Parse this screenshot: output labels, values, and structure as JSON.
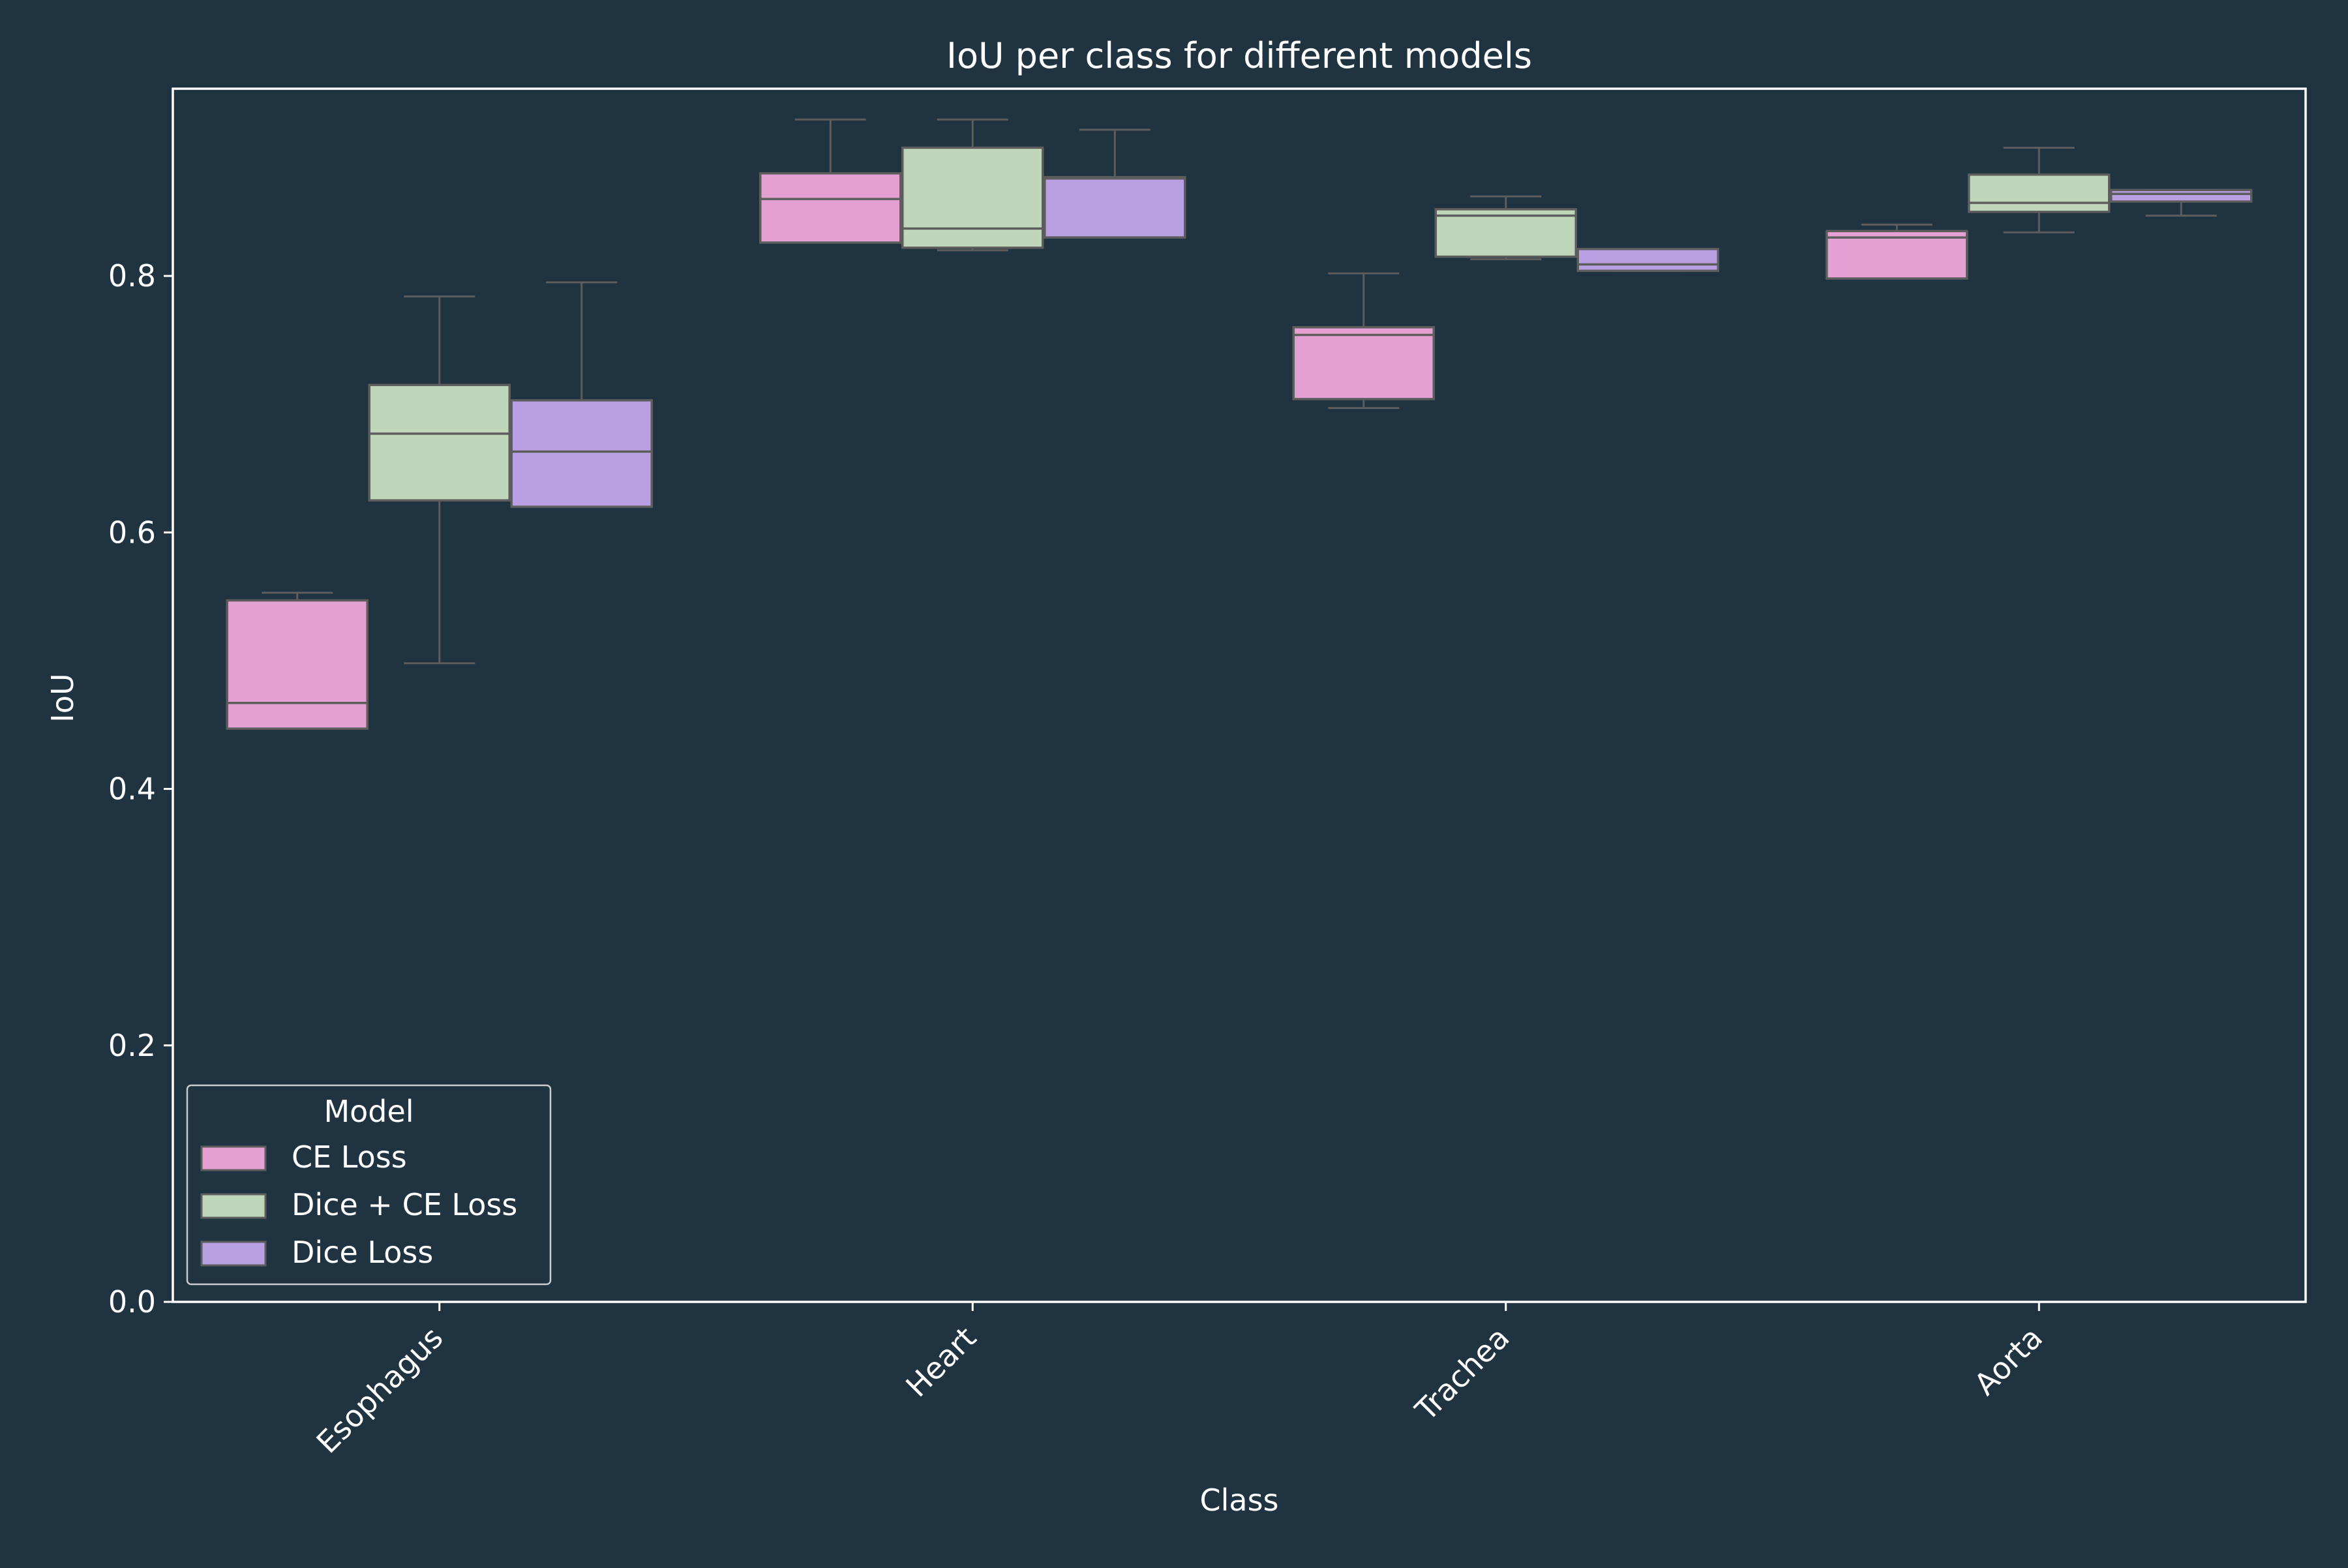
{
  "chart_data": {
    "type": "box",
    "title": "IoU per class for different models",
    "xlabel": "Class",
    "ylabel": "IoU",
    "ylim": [
      0.0,
      0.946
    ],
    "yticks": [
      "0.0",
      "0.2",
      "0.4",
      "0.6",
      "0.8"
    ],
    "categories": [
      "Esophagus",
      "Heart",
      "Trachea",
      "Aorta"
    ],
    "legend": {
      "title": "Model",
      "position": "lower-left"
    },
    "series": [
      {
        "name": "CE Loss",
        "color": "#e4a0d2",
        "boxes": [
          {
            "whisker_low": 0.447,
            "q1": 0.447,
            "median": 0.467,
            "q3": 0.547,
            "whisker_high": 0.553
          },
          {
            "whisker_low": 0.826,
            "q1": 0.826,
            "median": 0.86,
            "q3": 0.88,
            "whisker_high": 0.922
          },
          {
            "whisker_low": 0.697,
            "q1": 0.704,
            "median": 0.754,
            "q3": 0.76,
            "whisker_high": 0.802
          },
          {
            "whisker_low": 0.798,
            "q1": 0.798,
            "median": 0.83,
            "q3": 0.835,
            "whisker_high": 0.84
          }
        ]
      },
      {
        "name": "Dice + CE Loss",
        "color": "#bfd6bb",
        "boxes": [
          {
            "whisker_low": 0.498,
            "q1": 0.625,
            "median": 0.677,
            "q3": 0.715,
            "whisker_high": 0.784
          },
          {
            "whisker_low": 0.82,
            "q1": 0.822,
            "median": 0.837,
            "q3": 0.9,
            "whisker_high": 0.922
          },
          {
            "whisker_low": 0.813,
            "q1": 0.815,
            "median": 0.847,
            "q3": 0.852,
            "whisker_high": 0.862
          },
          {
            "whisker_low": 0.834,
            "q1": 0.85,
            "median": 0.857,
            "q3": 0.879,
            "whisker_high": 0.9
          }
        ]
      },
      {
        "name": "Dice Loss",
        "color": "#b9a0e2",
        "boxes": [
          {
            "whisker_low": 0.62,
            "q1": 0.62,
            "median": 0.663,
            "q3": 0.703,
            "whisker_high": 0.795
          },
          {
            "whisker_low": 0.83,
            "q1": 0.83,
            "median": 0.876,
            "q3": 0.877,
            "whisker_high": 0.914
          },
          {
            "whisker_low": 0.804,
            "q1": 0.804,
            "median": 0.809,
            "q3": 0.821,
            "whisker_high": 0.821
          },
          {
            "whisker_low": 0.847,
            "q1": 0.858,
            "median": 0.864,
            "q3": 0.867,
            "whisker_high": 0.867
          }
        ]
      }
    ]
  }
}
